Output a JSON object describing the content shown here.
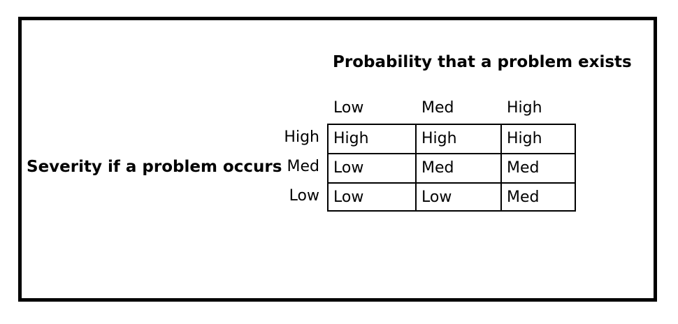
{
  "matrix": {
    "column_axis_title": "Probability that a problem exists",
    "row_axis_title": "Severity if a problem occurs",
    "column_headers": [
      "Low",
      "Med",
      "High"
    ],
    "row_headers": [
      "High",
      "Med",
      "Low"
    ],
    "cells": [
      [
        "High",
        "High",
        "High"
      ],
      [
        "Low",
        "Med",
        "Med"
      ],
      [
        "Low",
        "Low",
        "Med"
      ]
    ],
    "colors": {
      "border": "#000000",
      "background": "#ffffff",
      "text": "#000000"
    }
  }
}
